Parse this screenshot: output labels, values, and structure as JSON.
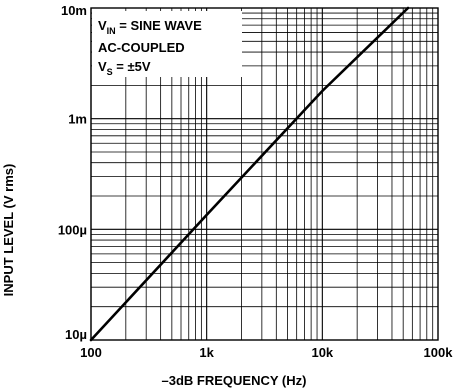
{
  "chart_data": {
    "type": "line",
    "title": "",
    "xlabel": "–3dB FREQUENCY (Hz)",
    "ylabel": "INPUT LEVEL (V rms)",
    "x_scale": "log",
    "y_scale": "log",
    "xlim": [
      100,
      100000
    ],
    "ylim": [
      1e-05,
      0.01
    ],
    "x_ticks": [
      {
        "value": 100,
        "label": "100"
      },
      {
        "value": 1000,
        "label": "1k"
      },
      {
        "value": 10000,
        "label": "10k"
      },
      {
        "value": 100000,
        "label": "100k"
      }
    ],
    "y_ticks": [
      {
        "value": 1e-05,
        "label": "10µ"
      },
      {
        "value": 0.0001,
        "label": "100µ"
      },
      {
        "value": 0.001,
        "label": "1m"
      },
      {
        "value": 0.01,
        "label": "10m"
      }
    ],
    "grid": true,
    "annotation": {
      "line1_main": "V",
      "line1_sub": "IN",
      "line1_rest": " = SINE WAVE",
      "line2": "AC-COUPLED",
      "line3_main": "V",
      "line3_sub": "S",
      "line3_rest": " = ±5V"
    },
    "series": [
      {
        "x": [
          100,
          1000,
          10000,
          55000
        ],
        "y": [
          1e-05,
          0.000135,
          0.00178,
          0.01
        ]
      }
    ]
  }
}
